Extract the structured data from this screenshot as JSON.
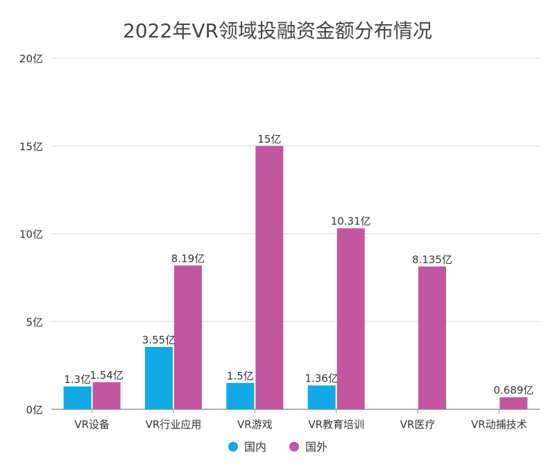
{
  "chart_data": {
    "type": "bar",
    "title": "2022年VR领域投融资金额分布情况",
    "xlabel": "",
    "ylabel": "",
    "unit": "亿",
    "ylim": [
      0,
      20
    ],
    "yticks": [
      0,
      5,
      10,
      15,
      20
    ],
    "ytick_labels": [
      "0亿",
      "5亿",
      "10亿",
      "15亿",
      "20亿"
    ],
    "grid": true,
    "legend_position": "bottom",
    "categories": [
      "VR设备",
      "VR行业应用",
      "VR游戏",
      "VR教育培训",
      "VR医疗",
      "VR动捕技术"
    ],
    "series": [
      {
        "name": "国内",
        "color": "#12a9e6",
        "values": [
          1.3,
          3.55,
          1.5,
          1.36,
          null,
          null
        ],
        "labels": [
          "1.3亿",
          "3.55亿",
          "1.5亿",
          "1.36亿",
          null,
          null
        ]
      },
      {
        "name": "国外",
        "color": "#c2569f",
        "values": [
          1.54,
          8.19,
          15,
          10.31,
          8.135,
          0.689
        ],
        "labels": [
          "1.54亿",
          "8.19亿",
          "15亿",
          "10.31亿",
          "8.135亿",
          "0.689亿"
        ]
      }
    ]
  }
}
